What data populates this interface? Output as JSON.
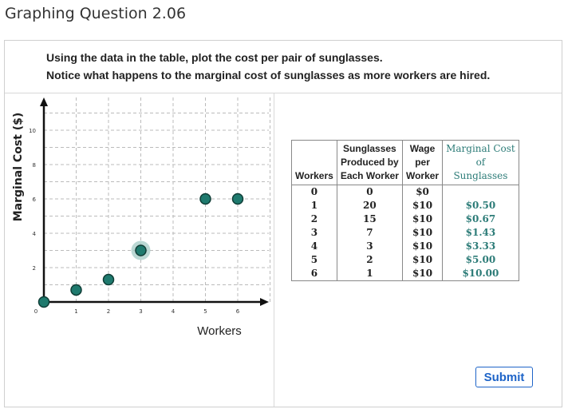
{
  "page": {
    "title": "Graphing Question 2.06",
    "instructions": [
      "Using the data in the table, plot the cost per pair of sunglasses.",
      "Notice what happens to the marginal cost of sunglasses as more workers are hired."
    ],
    "submit_label": "Submit"
  },
  "colors": {
    "point_fill": "#1f7a6e",
    "point_stroke": "#0f3d36",
    "highlight": "#9ec7c2",
    "teal_text": "#2d7c78",
    "button_blue": "#1e64c8"
  },
  "chart_data": {
    "type": "scatter",
    "title": "",
    "xlabel": "Workers",
    "ylabel": "Marginal Cost ($)",
    "xlim": [
      0,
      7
    ],
    "ylim": [
      0,
      11
    ],
    "x_ticks": [
      0,
      1,
      2,
      3,
      4,
      5,
      6
    ],
    "y_ticks": [
      2,
      4,
      6,
      8,
      10
    ],
    "grid": true,
    "points": [
      {
        "x": 0,
        "y": 0
      },
      {
        "x": 1,
        "y": 0.7
      },
      {
        "x": 2,
        "y": 1.3
      },
      {
        "x": 3,
        "y": 3
      },
      {
        "x": 5,
        "y": 6
      },
      {
        "x": 6,
        "y": 6
      }
    ],
    "highlighted_point_index": 3
  },
  "table": {
    "headers": [
      [
        "Workers"
      ],
      [
        "Sunglasses",
        "Produced by",
        "Each Worker"
      ],
      [
        "Wage",
        "per",
        "Worker"
      ],
      [
        "Marginal Cost",
        "of",
        "Sunglasses"
      ]
    ],
    "rows": [
      [
        "0",
        "0",
        "$0",
        ""
      ],
      [
        "1",
        "20",
        "$10",
        "$0.50"
      ],
      [
        "2",
        "15",
        "$10",
        "$0.67"
      ],
      [
        "3",
        "7",
        "$10",
        "$1.43"
      ],
      [
        "4",
        "3",
        "$10",
        "$3.33"
      ],
      [
        "5",
        "2",
        "$10",
        "$5.00"
      ],
      [
        "6",
        "1",
        "$10",
        "$10.00"
      ]
    ]
  }
}
